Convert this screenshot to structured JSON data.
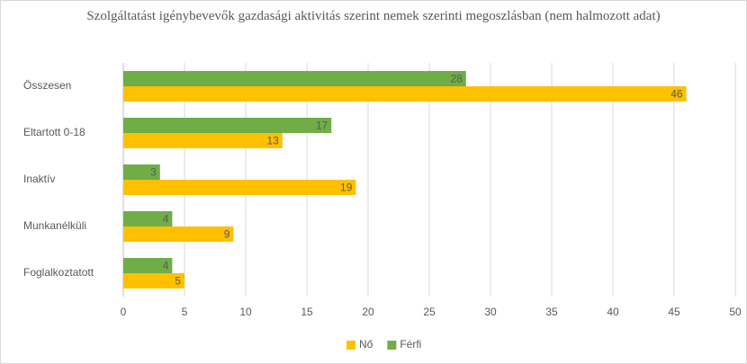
{
  "chart_data": {
    "type": "barh",
    "title": "Szolgáltatást igénybevevők gazdasági aktivitás szerint nemek szerinti megoszlásban (nem halmozott adat)",
    "categories": [
      "Összesen",
      "Eltartott 0-18",
      "Inaktív",
      "Munkanélküli",
      "Foglalkoztatott"
    ],
    "series": [
      {
        "name": "Nő",
        "color": "#ffc000",
        "values": [
          46,
          13,
          19,
          9,
          5
        ]
      },
      {
        "name": "Férfi",
        "color": "#70ad47",
        "values": [
          28,
          17,
          3,
          4,
          4
        ]
      }
    ],
    "xlim": [
      0,
      50
    ],
    "xticks": [
      0,
      5,
      10,
      15,
      20,
      25,
      30,
      35,
      40,
      45,
      50
    ],
    "grid": true,
    "legend": "bottom"
  }
}
